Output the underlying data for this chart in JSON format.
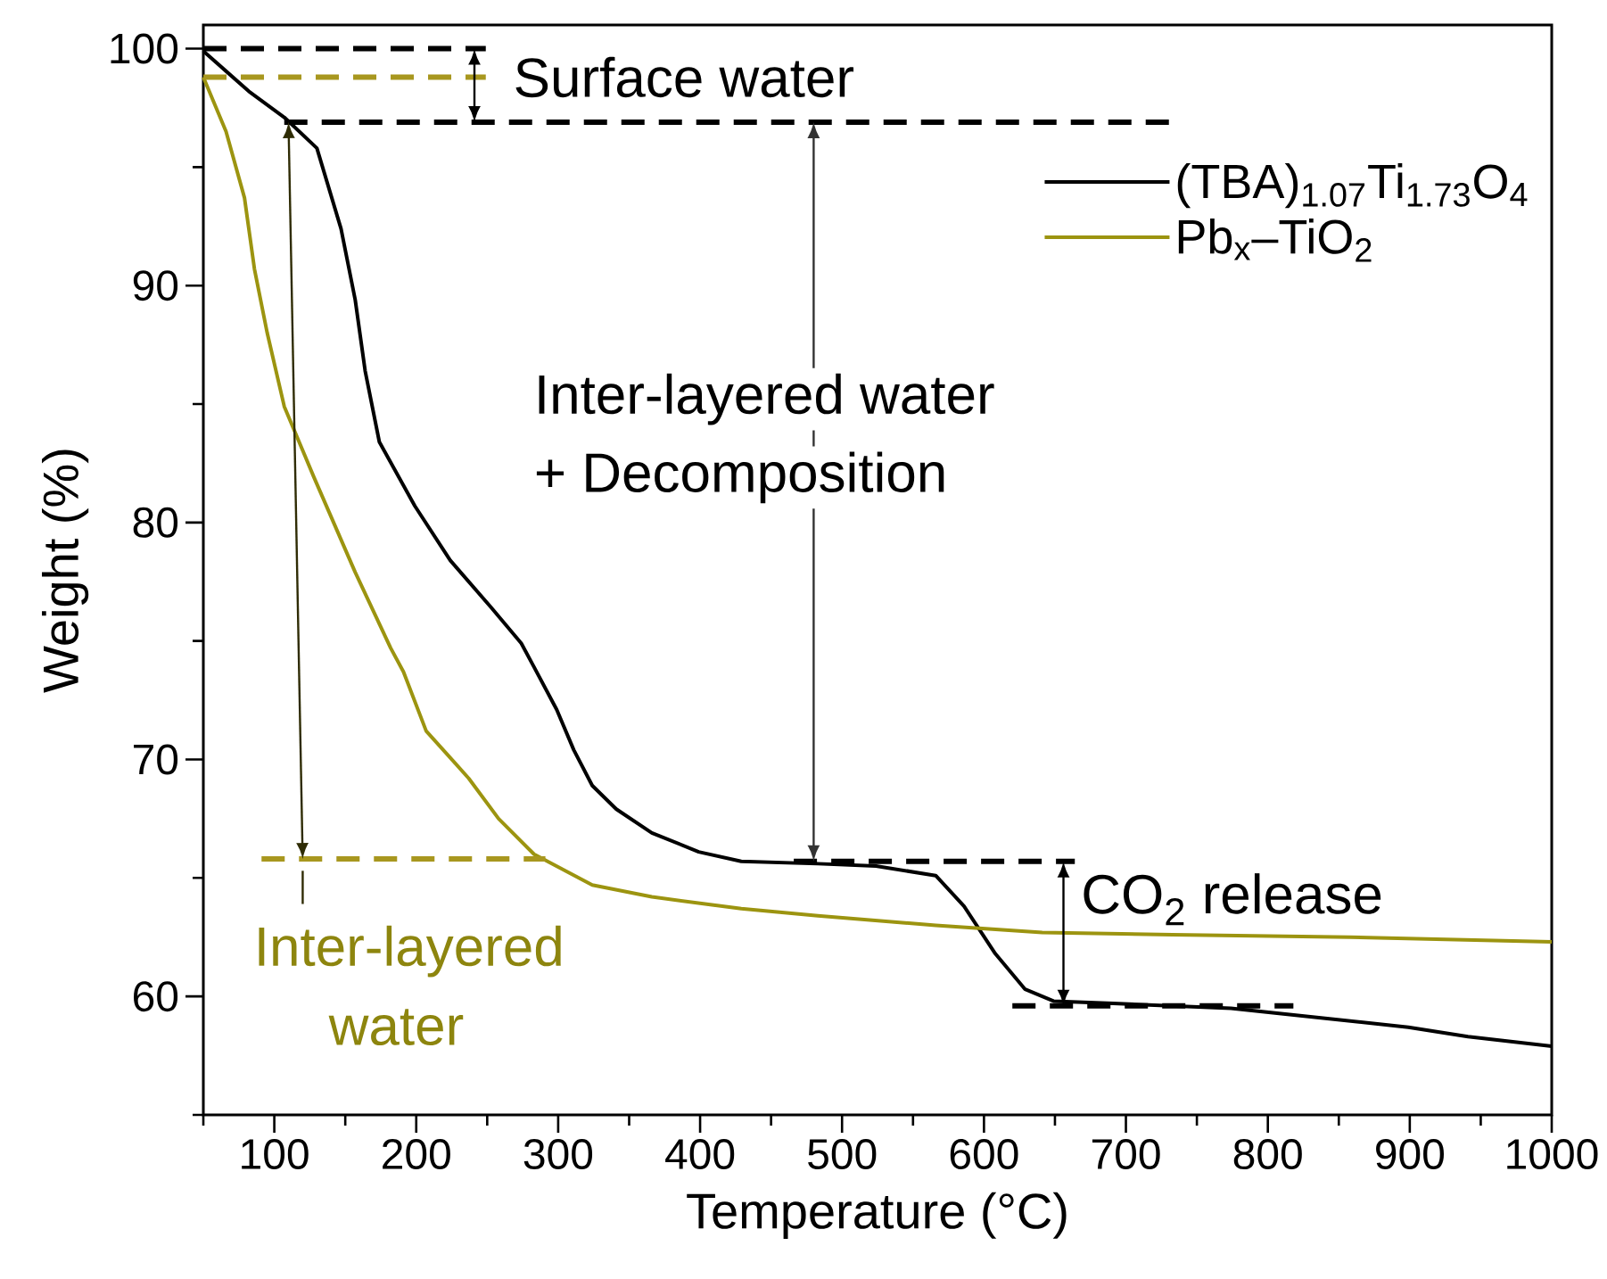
{
  "chart_data": {
    "type": "line",
    "xlabel": "Temperature (°C)",
    "ylabel": "Weight (%)",
    "xlim": [
      50,
      1000
    ],
    "ylim": [
      55,
      101
    ],
    "xticks": [
      {
        "value": 50,
        "label": null
      },
      100,
      {
        "value": 150,
        "label": null
      },
      200,
      {
        "value": 250,
        "label": null
      },
      300,
      {
        "value": 350,
        "label": null
      },
      400,
      {
        "value": 450,
        "label": null
      },
      500,
      {
        "value": 550,
        "label": null
      },
      600,
      {
        "value": 650,
        "label": null
      },
      700,
      {
        "value": 750,
        "label": null
      },
      800,
      {
        "value": 850,
        "label": null
      },
      900,
      {
        "value": 950,
        "label": null
      },
      1000
    ],
    "yticks": [
      {
        "value": 55,
        "label": null
      },
      60,
      {
        "value": 65,
        "label": null
      },
      70,
      {
        "value": 75,
        "label": null
      },
      80,
      {
        "value": 85,
        "label": null
      },
      90,
      {
        "value": 95,
        "label": null
      },
      100
    ],
    "legend": "top right",
    "series": [
      {
        "name": "(TBA)$_{1.07}$Ti$_{1.73}$O$_{4}$",
        "color": "#000000",
        "x": [
          50,
          82,
          107,
          130,
          147,
          157,
          164,
          174,
          199,
          224,
          253,
          274,
          283,
          299,
          311,
          324,
          341,
          366,
          399,
          429,
          483,
          524,
          566,
          586,
          608,
          629,
          649,
          691,
          774,
          836,
          899,
          941,
          1000
        ],
        "values": [
          99.9,
          98.2,
          97.1,
          95.8,
          92.4,
          89.4,
          86.4,
          83.4,
          80.7,
          78.4,
          76.4,
          74.9,
          73.9,
          72.1,
          70.4,
          68.9,
          67.9,
          66.9,
          66.1,
          65.7,
          65.6,
          65.5,
          65.1,
          63.8,
          61.8,
          60.3,
          59.8,
          59.7,
          59.5,
          59.1,
          58.7,
          58.3,
          57.9
        ]
      },
      {
        "name": "Pb$_{x}$–TiO$_{2}$",
        "color": "#9c9410",
        "x": [
          50,
          66,
          79,
          86,
          95,
          107,
          128,
          157,
          182,
          191,
          207,
          237,
          258,
          283,
          324,
          366,
          429,
          483,
          566,
          641,
          733,
          858,
          1000
        ],
        "values": [
          98.8,
          96.5,
          93.7,
          90.7,
          88.0,
          84.9,
          81.9,
          77.9,
          74.7,
          73.7,
          71.2,
          69.2,
          67.5,
          66.0,
          64.7,
          64.2,
          63.7,
          63.4,
          63.0,
          62.7,
          62.6,
          62.5,
          62.3
        ]
      },
      {
        "color": "#000000",
        "line_style": "dashed",
        "x": [
          50,
          249
        ],
        "values": [
          100,
          100
        ]
      },
      {
        "color": "#000000",
        "line_style": "dashed",
        "x": [
          107,
          733
        ],
        "values": [
          96.9,
          96.9
        ]
      },
      {
        "color": "#a8971f",
        "line_style": "dashed",
        "x": [
          50,
          249
        ],
        "values": [
          98.8,
          98.8
        ]
      },
      {
        "color": "#a8971f",
        "line_style": "dashed",
        "x": [
          91,
          291
        ],
        "values": [
          65.8,
          65.8
        ]
      },
      {
        "color": "#000000",
        "line_style": "dashed",
        "x": [
          466,
          664
        ],
        "values": [
          65.7,
          65.7
        ]
      },
      {
        "color": "#000000",
        "line_style": "dashed",
        "x": [
          620,
          818
        ],
        "values": [
          59.6,
          59.6
        ]
      }
    ],
    "annotations": [
      "Surface water",
      "Inter-layered water",
      "+ Decomposition",
      "Inter-layered",
      "water",
      "CO$_{2}$ release"
    ]
  }
}
